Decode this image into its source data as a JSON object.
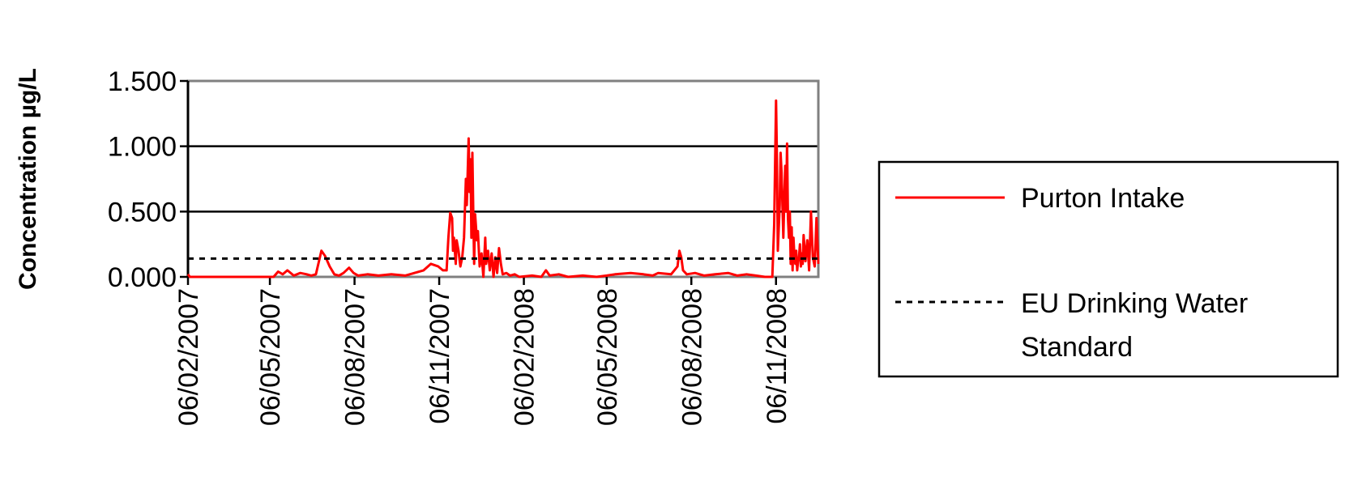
{
  "chart_data": {
    "type": "line",
    "title": "",
    "xlabel": "",
    "ylabel": "Concentration µg/L",
    "x_ticks": [
      "06/02/2007",
      "06/05/2007",
      "06/08/2007",
      "06/11/2007",
      "06/02/2008",
      "06/05/2008",
      "06/08/2008",
      "06/11/2008"
    ],
    "y_ticks": [
      "0.000",
      "0.500",
      "1.000",
      "1.500"
    ],
    "xlim": [
      "2007-02-06",
      "2008-12-22"
    ],
    "ylim": [
      0,
      1.5
    ],
    "grid": "horizontal",
    "legend_position": "right",
    "series": [
      {
        "name": "Purton Intake",
        "color": "#ff0000",
        "style": "solid",
        "points": [
          [
            "2007-02-06",
            0.02
          ],
          [
            "2007-02-08",
            0.0
          ],
          [
            "2007-02-20",
            0.0
          ],
          [
            "2007-03-15",
            0.0
          ],
          [
            "2007-04-10",
            0.0
          ],
          [
            "2007-05-01",
            0.0
          ],
          [
            "2007-05-10",
            0.0
          ],
          [
            "2007-05-15",
            0.04
          ],
          [
            "2007-05-20",
            0.02
          ],
          [
            "2007-05-25",
            0.05
          ],
          [
            "2007-06-01",
            0.01
          ],
          [
            "2007-06-08",
            0.03
          ],
          [
            "2007-06-15",
            0.02
          ],
          [
            "2007-06-20",
            0.01
          ],
          [
            "2007-06-25",
            0.02
          ],
          [
            "2007-07-01",
            0.2
          ],
          [
            "2007-07-05",
            0.16
          ],
          [
            "2007-07-10",
            0.08
          ],
          [
            "2007-07-15",
            0.02
          ],
          [
            "2007-07-20",
            0.01
          ],
          [
            "2007-07-25",
            0.03
          ],
          [
            "2007-07-31",
            0.07
          ],
          [
            "2007-08-05",
            0.03
          ],
          [
            "2007-08-10",
            0.01
          ],
          [
            "2007-08-20",
            0.02
          ],
          [
            "2007-09-01",
            0.01
          ],
          [
            "2007-09-15",
            0.02
          ],
          [
            "2007-09-30",
            0.01
          ],
          [
            "2007-10-10",
            0.03
          ],
          [
            "2007-10-20",
            0.05
          ],
          [
            "2007-10-28",
            0.1
          ],
          [
            "2007-11-05",
            0.08
          ],
          [
            "2007-11-10",
            0.05
          ],
          [
            "2007-11-14",
            0.05
          ],
          [
            "2007-11-16",
            0.3
          ],
          [
            "2007-11-18",
            0.49
          ],
          [
            "2007-11-20",
            0.45
          ],
          [
            "2007-11-21",
            0.2
          ],
          [
            "2007-11-22",
            0.3
          ],
          [
            "2007-11-24",
            0.1
          ],
          [
            "2007-11-25",
            0.28
          ],
          [
            "2007-11-27",
            0.2
          ],
          [
            "2007-11-29",
            0.08
          ],
          [
            "2007-12-01",
            0.15
          ],
          [
            "2007-12-03",
            0.3
          ],
          [
            "2007-12-05",
            0.75
          ],
          [
            "2007-12-06",
            0.55
          ],
          [
            "2007-12-08",
            1.06
          ],
          [
            "2007-12-09",
            0.65
          ],
          [
            "2007-12-10",
            0.9
          ],
          [
            "2007-12-11",
            0.3
          ],
          [
            "2007-12-12",
            0.95
          ],
          [
            "2007-12-13",
            0.5
          ],
          [
            "2007-12-14",
            0.1
          ],
          [
            "2007-12-15",
            0.48
          ],
          [
            "2007-12-17",
            0.28
          ],
          [
            "2007-12-18",
            0.35
          ],
          [
            "2007-12-20",
            0.08
          ],
          [
            "2007-12-22",
            0.18
          ],
          [
            "2007-12-24",
            0.0
          ],
          [
            "2007-12-26",
            0.3
          ],
          [
            "2007-12-27",
            0.1
          ],
          [
            "2007-12-29",
            0.2
          ],
          [
            "2007-12-31",
            0.05
          ],
          [
            "2008-01-02",
            0.18
          ],
          [
            "2008-01-04",
            0.0
          ],
          [
            "2008-01-06",
            0.15
          ],
          [
            "2008-01-08",
            0.03
          ],
          [
            "2008-01-10",
            0.22
          ],
          [
            "2008-01-12",
            0.1
          ],
          [
            "2008-01-14",
            0.02
          ],
          [
            "2008-01-18",
            0.03
          ],
          [
            "2008-01-22",
            0.01
          ],
          [
            "2008-01-27",
            0.02
          ],
          [
            "2008-02-01",
            0.0
          ],
          [
            "2008-02-15",
            0.01
          ],
          [
            "2008-02-25",
            0.0
          ],
          [
            "2008-03-01",
            0.05
          ],
          [
            "2008-03-05",
            0.01
          ],
          [
            "2008-03-15",
            0.02
          ],
          [
            "2008-03-25",
            0.0
          ],
          [
            "2008-04-10",
            0.01
          ],
          [
            "2008-04-25",
            0.0
          ],
          [
            "2008-05-06",
            0.01
          ],
          [
            "2008-05-15",
            0.02
          ],
          [
            "2008-06-01",
            0.03
          ],
          [
            "2008-06-15",
            0.02
          ],
          [
            "2008-06-25",
            0.01
          ],
          [
            "2008-07-01",
            0.03
          ],
          [
            "2008-07-15",
            0.02
          ],
          [
            "2008-07-22",
            0.08
          ],
          [
            "2008-07-24",
            0.2
          ],
          [
            "2008-07-26",
            0.15
          ],
          [
            "2008-07-28",
            0.05
          ],
          [
            "2008-08-01",
            0.02
          ],
          [
            "2008-08-10",
            0.03
          ],
          [
            "2008-08-20",
            0.01
          ],
          [
            "2008-09-01",
            0.02
          ],
          [
            "2008-09-15",
            0.03
          ],
          [
            "2008-09-25",
            0.01
          ],
          [
            "2008-10-05",
            0.02
          ],
          [
            "2008-10-15",
            0.01
          ],
          [
            "2008-10-25",
            0.0
          ],
          [
            "2008-11-02",
            0.0
          ],
          [
            "2008-11-04",
            0.4
          ],
          [
            "2008-11-06",
            1.35
          ],
          [
            "2008-11-07",
            0.9
          ],
          [
            "2008-11-08",
            0.2
          ],
          [
            "2008-11-10",
            0.55
          ],
          [
            "2008-11-11",
            0.95
          ],
          [
            "2008-11-12",
            0.8
          ],
          [
            "2008-11-14",
            0.3
          ],
          [
            "2008-11-15",
            0.6
          ],
          [
            "2008-11-16",
            0.85
          ],
          [
            "2008-11-17",
            0.5
          ],
          [
            "2008-11-18",
            1.02
          ],
          [
            "2008-11-19",
            0.45
          ],
          [
            "2008-11-20",
            0.3
          ],
          [
            "2008-11-21",
            0.5
          ],
          [
            "2008-11-22",
            0.1
          ],
          [
            "2008-11-23",
            0.38
          ],
          [
            "2008-11-24",
            0.05
          ],
          [
            "2008-11-25",
            0.3
          ],
          [
            "2008-11-26",
            0.15
          ],
          [
            "2008-11-27",
            0.1
          ],
          [
            "2008-11-28",
            0.2
          ],
          [
            "2008-11-29",
            0.05
          ],
          [
            "2008-11-30",
            0.12
          ],
          [
            "2008-12-01",
            0.15
          ],
          [
            "2008-12-02",
            0.25
          ],
          [
            "2008-12-03",
            0.08
          ],
          [
            "2008-12-04",
            0.18
          ],
          [
            "2008-12-05",
            0.1
          ],
          [
            "2008-12-06",
            0.32
          ],
          [
            "2008-12-08",
            0.12
          ],
          [
            "2008-12-10",
            0.28
          ],
          [
            "2008-12-12",
            0.05
          ],
          [
            "2008-12-14",
            0.5
          ],
          [
            "2008-12-16",
            0.15
          ],
          [
            "2008-12-18",
            0.08
          ],
          [
            "2008-12-20",
            0.45
          ],
          [
            "2008-12-22",
            0.1
          ]
        ]
      },
      {
        "name": "EU Drinking Water Standard",
        "color": "#000000",
        "style": "dotted",
        "value": 0.14
      }
    ]
  }
}
